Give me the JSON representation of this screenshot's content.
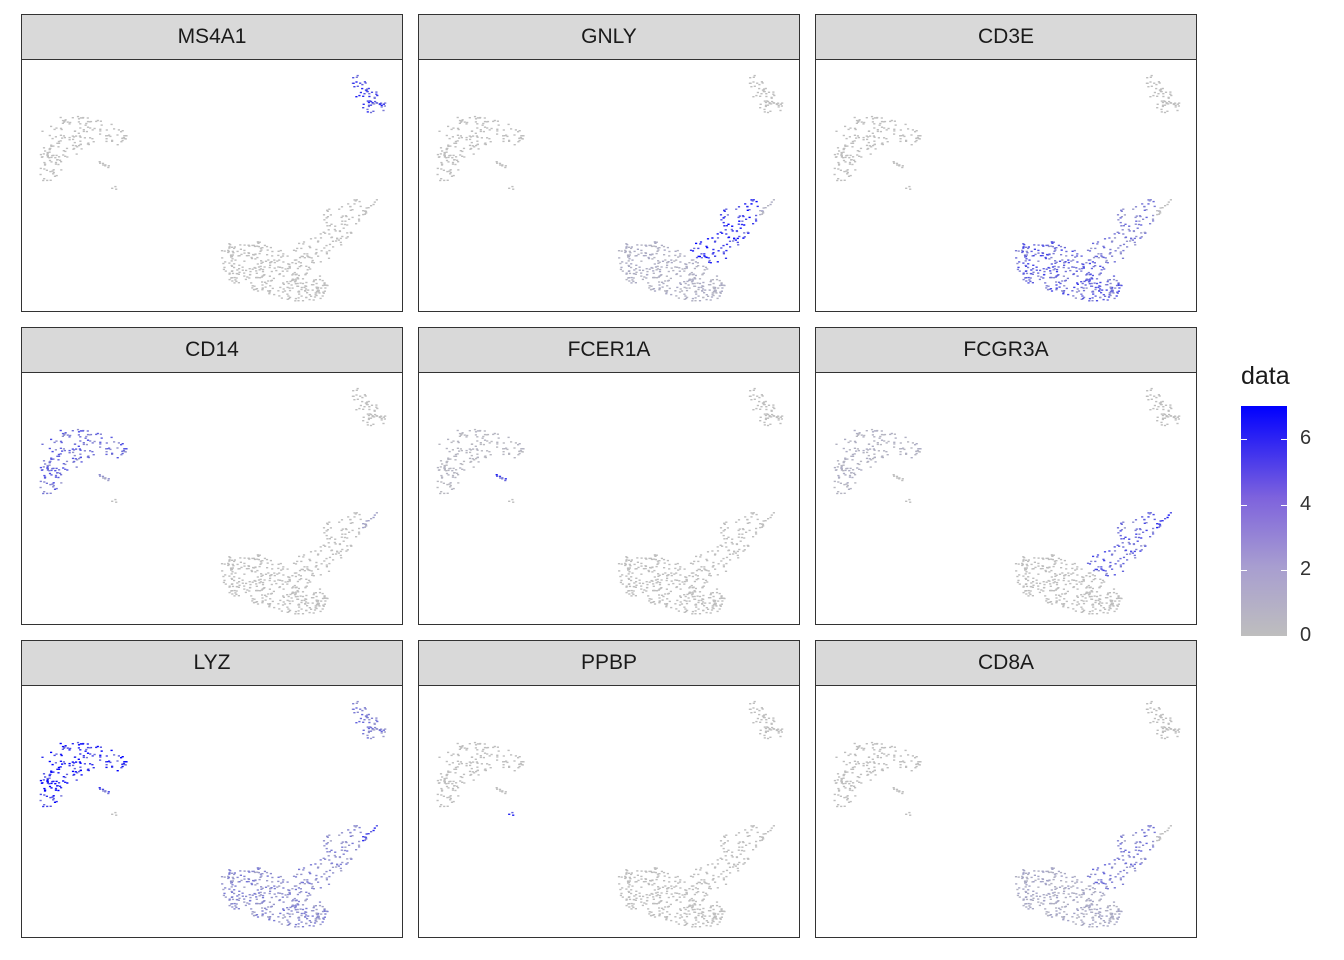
{
  "chart_data": {
    "type": "scatter",
    "panels": [
      {
        "title": "MS4A1",
        "scores": {
          "B": 4.5,
          "CD14": 0,
          "NK": 0,
          "T": 0,
          "FCGR3A": 0,
          "DC": 0,
          "Platelet": 0
        }
      },
      {
        "title": "GNLY",
        "scores": {
          "B": 0,
          "CD14": 0,
          "NK": 5.5,
          "T": 0.6,
          "FCGR3A": 0.5,
          "DC": 0,
          "Platelet": 0
        }
      },
      {
        "title": "CD3E",
        "scores": {
          "B": 0,
          "CD14": 0,
          "NK": 2.5,
          "T": 3.5,
          "FCGR3A": 0,
          "DC": 0,
          "Platelet": 0
        }
      },
      {
        "title": "CD14",
        "scores": {
          "B": 0,
          "CD14": 3.2,
          "NK": 0,
          "T": 0,
          "FCGR3A": 1.0,
          "DC": 1.5,
          "Platelet": 0
        }
      },
      {
        "title": "FCER1A",
        "scores": {
          "B": 0,
          "CD14": 0.3,
          "NK": 0,
          "T": 0,
          "FCGR3A": 0,
          "DC": 4.5,
          "Platelet": 0
        }
      },
      {
        "title": "FCGR3A",
        "scores": {
          "B": 0,
          "CD14": 0.5,
          "NK": 3.5,
          "T": 0,
          "FCGR3A": 5.0,
          "DC": 0,
          "Platelet": 0
        }
      },
      {
        "title": "LYZ",
        "scores": {
          "B": 2.5,
          "CD14": 6.0,
          "NK": 2.0,
          "T": 2.0,
          "FCGR3A": 4.5,
          "DC": 4.0,
          "Platelet": 0
        }
      },
      {
        "title": "PPBP",
        "scores": {
          "B": 0,
          "CD14": 0,
          "NK": 0,
          "T": 0,
          "FCGR3A": 0,
          "DC": 0,
          "Platelet": 5.5
        }
      },
      {
        "title": "CD8A",
        "scores": {
          "B": 0,
          "CD14": 0,
          "NK": 2.5,
          "T": 0.8,
          "FCGR3A": 0,
          "DC": 0,
          "Platelet": 0
        }
      }
    ],
    "legend": {
      "title": "data",
      "range": [
        0,
        7
      ],
      "ticks": [
        "0",
        "2",
        "4",
        "6"
      ],
      "low_color": "#bebebe",
      "high_color": "#0000ff",
      "placement": "right"
    },
    "grid": false
  }
}
